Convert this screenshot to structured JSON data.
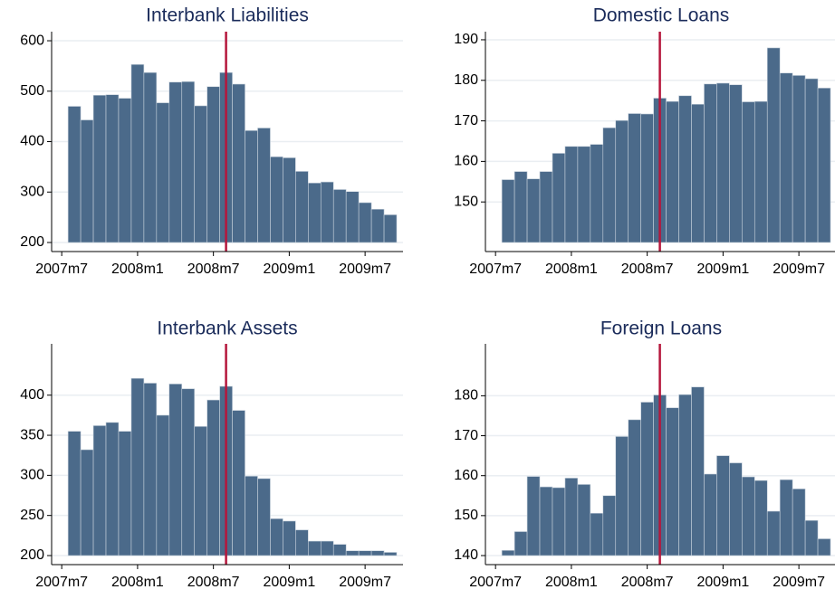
{
  "chart_data": [
    {
      "type": "bar",
      "title": "Interbank Liabilities",
      "x": [
        571,
        572,
        573,
        574,
        575,
        576,
        577,
        578,
        579,
        580,
        581,
        582,
        583,
        584,
        585,
        586,
        587,
        588,
        589,
        590,
        591,
        592,
        593,
        594,
        595,
        596
      ],
      "values": [
        470,
        443,
        492,
        493,
        486,
        553,
        537,
        477,
        518,
        519,
        471,
        509,
        537,
        514,
        422,
        427,
        370,
        368,
        341,
        318,
        320,
        305,
        301,
        279,
        266,
        255
      ],
      "color": "#4b6a8a",
      "edgecolor": "#c9d3dd",
      "xlim": [
        569.2,
        597
      ],
      "ylim": [
        200,
        618
      ],
      "xticks": [
        {
          "value": 570,
          "label": "2007m7"
        },
        {
          "value": 576,
          "label": "2008m1"
        },
        {
          "value": 582,
          "label": "2008m7"
        },
        {
          "value": 588,
          "label": "2009m1"
        },
        {
          "value": 594,
          "label": "2009m7"
        }
      ],
      "yticks": [
        200,
        300,
        400,
        500,
        600
      ],
      "grid": true,
      "vline": 583,
      "vline_color": "#b5163c"
    },
    {
      "type": "bar",
      "title": "Domestic Loans",
      "x": [
        571,
        572,
        573,
        574,
        575,
        576,
        577,
        578,
        579,
        580,
        581,
        582,
        583,
        584,
        585,
        586,
        587,
        588,
        589,
        590,
        591,
        592,
        593,
        594,
        595,
        596
      ],
      "values": [
        155.5,
        157.5,
        155.7,
        157.5,
        162,
        163.7,
        163.7,
        164.2,
        168.3,
        170.1,
        171.8,
        171.7,
        175.6,
        174.8,
        176.2,
        174.1,
        179.1,
        179.3,
        178.9,
        174.7,
        174.8,
        188,
        181.8,
        181.2,
        180.4,
        178.1
      ],
      "color": "#4b6a8a",
      "edgecolor": "#c9d3dd",
      "xlim": [
        569.2,
        597
      ],
      "ylim": [
        140,
        192
      ],
      "xticks": [
        {
          "value": 570,
          "label": "2007m7"
        },
        {
          "value": 576,
          "label": "2008m1"
        },
        {
          "value": 582,
          "label": "2008m7"
        },
        {
          "value": 588,
          "label": "2009m1"
        },
        {
          "value": 594,
          "label": "2009m7"
        }
      ],
      "yticks": [
        150,
        160,
        170,
        180,
        190
      ],
      "grid": true,
      "vline": 583,
      "vline_color": "#b5163c"
    },
    {
      "type": "bar",
      "title": "Interbank Assets",
      "x": [
        571,
        572,
        573,
        574,
        575,
        576,
        577,
        578,
        579,
        580,
        581,
        582,
        583,
        584,
        585,
        586,
        587,
        588,
        589,
        590,
        591,
        592,
        593,
        594,
        595,
        596
      ],
      "values": [
        355,
        332,
        362,
        366,
        355,
        421,
        415,
        375,
        414,
        408,
        361,
        394,
        411,
        381,
        299,
        296,
        246,
        243,
        232,
        218,
        218,
        214,
        206,
        206,
        206,
        204
      ],
      "color": "#4b6a8a",
      "edgecolor": "#c9d3dd",
      "xlim": [
        569.2,
        597
      ],
      "ylim": [
        200,
        464
      ],
      "xticks": [
        {
          "value": 570,
          "label": "2007m7"
        },
        {
          "value": 576,
          "label": "2008m1"
        },
        {
          "value": 582,
          "label": "2008m7"
        },
        {
          "value": 588,
          "label": "2009m1"
        },
        {
          "value": 594,
          "label": "2009m7"
        }
      ],
      "yticks": [
        200,
        250,
        300,
        350,
        400
      ],
      "grid": true,
      "vline": 583,
      "vline_color": "#b5163c"
    },
    {
      "type": "bar",
      "title": "Foreign Loans",
      "x": [
        571,
        572,
        573,
        574,
        575,
        576,
        577,
        578,
        579,
        580,
        581,
        582,
        583,
        584,
        585,
        586,
        587,
        588,
        589,
        590,
        591,
        592,
        593,
        594,
        595,
        596
      ],
      "values": [
        141.3,
        146,
        159.8,
        157.2,
        157,
        159.4,
        157.8,
        150.6,
        155,
        169.8,
        174,
        178.4,
        180.2,
        177,
        180.3,
        182.2,
        160.4,
        165,
        163.2,
        159.7,
        158.8,
        151.1,
        159,
        156.7,
        148.8,
        144.2
      ],
      "color": "#4b6a8a",
      "edgecolor": "#c9d3dd",
      "xlim": [
        569.2,
        597
      ],
      "ylim": [
        140,
        193
      ],
      "xticks": [
        {
          "value": 570,
          "label": "2007m7"
        },
        {
          "value": 576,
          "label": "2008m1"
        },
        {
          "value": 582,
          "label": "2008m7"
        },
        {
          "value": 588,
          "label": "2009m1"
        },
        {
          "value": 594,
          "label": "2009m7"
        }
      ],
      "yticks": [
        140,
        150,
        160,
        170,
        180
      ],
      "grid": true,
      "vline": 583,
      "vline_color": "#b5163c"
    }
  ]
}
